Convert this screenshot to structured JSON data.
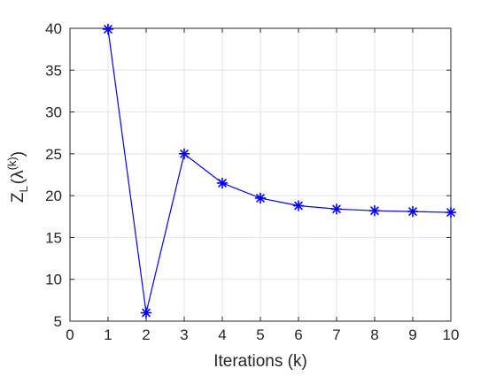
{
  "chart_data": {
    "type": "line",
    "x": [
      1,
      2,
      3,
      4,
      5,
      6,
      7,
      8,
      9,
      10
    ],
    "series": [
      {
        "values": [
          39.9,
          6.0,
          25.0,
          21.5,
          19.7,
          18.8,
          18.4,
          18.2,
          18.1,
          18.0
        ],
        "color": "#0000ff",
        "marker": "asterisk"
      }
    ],
    "xlim": [
      0,
      10
    ],
    "ylim": [
      5,
      40
    ],
    "xticks": [
      "0",
      "1",
      "2",
      "3",
      "4",
      "5",
      "6",
      "7",
      "8",
      "9",
      "10"
    ],
    "yticks": [
      "5",
      "10",
      "15",
      "20",
      "25",
      "30",
      "35",
      "40"
    ],
    "xlabel": "Iterations (k)",
    "ylabel": {
      "main": "Z",
      "sub": "L",
      "paren_open": "(",
      "lambda": "λ",
      "sup": "(k)",
      "paren_close": ")"
    },
    "grid": true,
    "title": ""
  }
}
